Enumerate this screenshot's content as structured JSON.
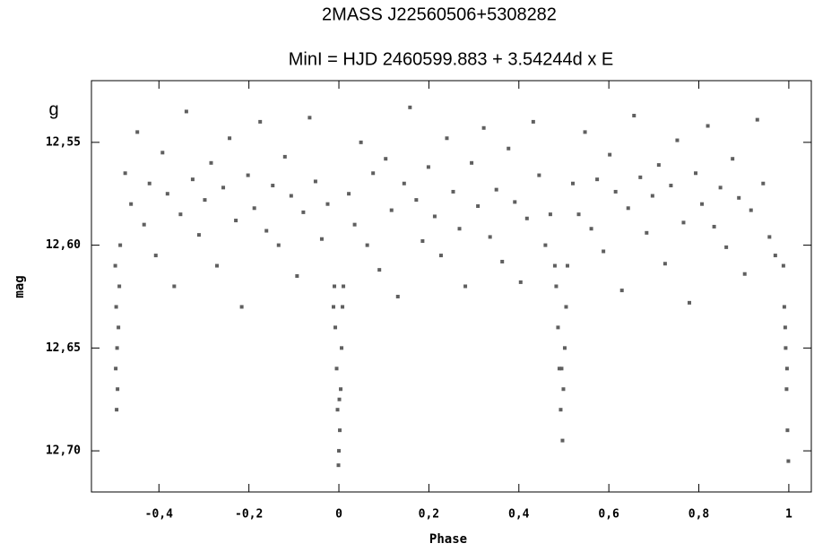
{
  "chart_data": {
    "type": "scatter",
    "title": "2MASS J22560506+5308282",
    "subtitle": "MinI = HJD 2460599.883 + 3.54244d x E",
    "annotation": "g",
    "x_label": "Phase",
    "y_label": "mag",
    "color": "#5f5f5f",
    "y_inverted": true,
    "xlim": [
      -0.55,
      1.05
    ],
    "ylim": [
      12.52,
      12.72
    ],
    "xticks": [
      {
        "value": -0.4,
        "label": "-0,4"
      },
      {
        "value": -0.2,
        "label": "-0,2"
      },
      0,
      {
        "value": 0.2,
        "label": "0,2"
      },
      {
        "value": 0.4,
        "label": "0,4"
      },
      {
        "value": 0.6,
        "label": "0,6"
      },
      {
        "value": 0.8,
        "label": "0,8"
      },
      1
    ],
    "yticks": [
      {
        "value": 12.55,
        "label": "12,55"
      },
      {
        "value": 12.6,
        "label": "12,60"
      },
      {
        "value": 12.65,
        "label": "12,65"
      },
      {
        "value": 12.7,
        "label": "12,70"
      }
    ],
    "x": [
      -0.475,
      -0.462,
      -0.448,
      -0.433,
      -0.421,
      -0.407,
      -0.392,
      -0.381,
      -0.366,
      -0.352,
      -0.339,
      -0.325,
      -0.311,
      -0.298,
      -0.284,
      -0.271,
      -0.257,
      -0.243,
      -0.229,
      -0.216,
      -0.202,
      -0.188,
      -0.175,
      -0.161,
      -0.147,
      -0.134,
      -0.12,
      -0.106,
      -0.093,
      -0.079,
      -0.065,
      -0.052,
      -0.038,
      -0.025,
      0.022,
      0.035,
      0.049,
      0.063,
      0.076,
      0.09,
      0.104,
      0.117,
      0.131,
      0.145,
      0.158,
      0.172,
      0.186,
      0.199,
      0.213,
      0.227,
      0.24,
      0.254,
      0.268,
      0.281,
      0.295,
      0.309,
      0.322,
      0.336,
      0.35,
      0.363,
      0.377,
      0.391,
      0.404,
      0.418,
      0.432,
      0.445,
      0.459,
      0.47,
      0.52,
      0.533,
      0.547,
      0.561,
      0.574,
      0.588,
      0.602,
      0.615,
      0.629,
      0.643,
      0.656,
      0.67,
      0.684,
      0.697,
      0.711,
      0.725,
      0.738,
      0.752,
      0.766,
      0.779,
      0.793,
      0.807,
      0.82,
      0.834,
      0.848,
      0.861,
      0.875,
      0.889,
      0.902,
      0.916,
      0.93,
      0.943,
      0.957,
      0.97,
      -0.497,
      -0.495,
      -0.493,
      -0.492,
      -0.494,
      -0.49,
      -0.488,
      -0.496,
      -0.486,
      -0.012,
      -0.008,
      -0.005,
      -0.003,
      0.0,
      0.002,
      0.004,
      0.006,
      -0.001,
      0.008,
      0.01,
      -0.01,
      0.001,
      0.483,
      0.487,
      0.49,
      0.493,
      0.497,
      0.499,
      0.502,
      0.505,
      0.495,
      0.508,
      0.48,
      0.988,
      0.99,
      0.993,
      0.995,
      0.997,
      0.999,
      0.992,
      0.996
    ],
    "values": [
      12.565,
      12.58,
      12.545,
      12.59,
      12.57,
      12.605,
      12.555,
      12.575,
      12.62,
      12.585,
      12.535,
      12.568,
      12.595,
      12.578,
      12.56,
      12.61,
      12.572,
      12.548,
      12.588,
      12.63,
      12.566,
      12.582,
      12.54,
      12.593,
      12.571,
      12.6,
      12.557,
      12.576,
      12.615,
      12.584,
      12.538,
      12.569,
      12.597,
      12.58,
      12.575,
      12.59,
      12.55,
      12.6,
      12.565,
      12.612,
      12.558,
      12.583,
      12.625,
      12.57,
      12.533,
      12.578,
      12.598,
      12.562,
      12.586,
      12.605,
      12.548,
      12.574,
      12.592,
      12.62,
      12.56,
      12.581,
      12.543,
      12.596,
      12.573,
      12.608,
      12.553,
      12.579,
      12.618,
      12.587,
      12.54,
      12.566,
      12.6,
      12.585,
      12.57,
      12.585,
      12.545,
      12.592,
      12.568,
      12.603,
      12.556,
      12.574,
      12.622,
      12.582,
      12.537,
      12.567,
      12.594,
      12.576,
      12.561,
      12.609,
      12.571,
      12.549,
      12.589,
      12.628,
      12.565,
      12.58,
      12.542,
      12.591,
      12.572,
      12.601,
      12.558,
      12.577,
      12.614,
      12.583,
      12.539,
      12.57,
      12.596,
      12.605,
      12.61,
      12.63,
      12.65,
      12.67,
      12.68,
      12.64,
      12.62,
      12.66,
      12.6,
      12.63,
      12.64,
      12.66,
      12.68,
      12.7,
      12.69,
      12.67,
      12.65,
      12.707,
      12.63,
      12.62,
      12.62,
      12.675,
      12.62,
      12.64,
      12.66,
      12.68,
      12.695,
      12.67,
      12.65,
      12.63,
      12.66,
      12.61,
      12.61,
      12.61,
      12.63,
      12.65,
      12.67,
      12.69,
      12.705,
      12.64,
      12.66
    ]
  }
}
